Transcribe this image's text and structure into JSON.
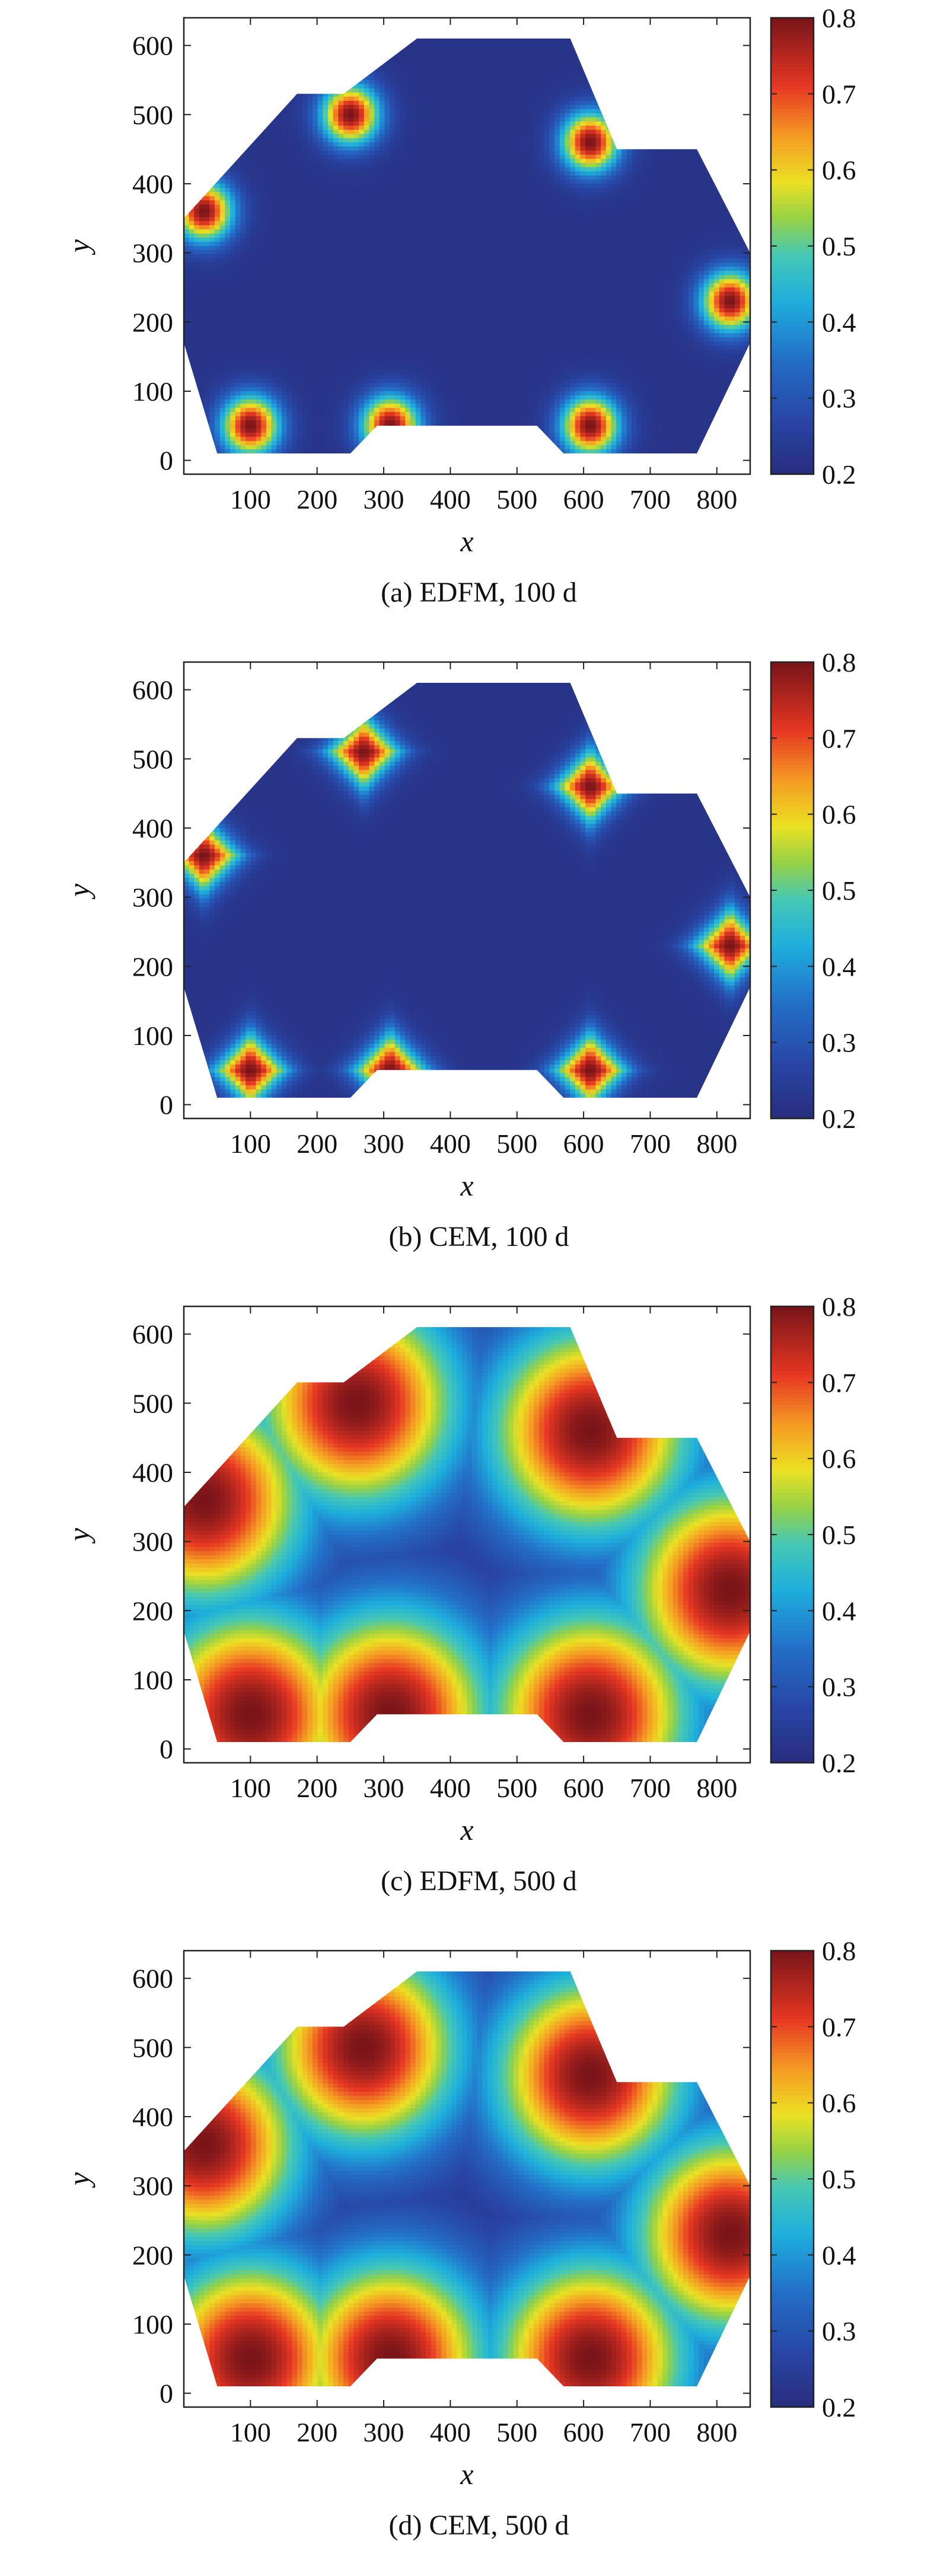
{
  "chart_data": [
    {
      "type": "heatmap",
      "caption": "(a) EDFM, 100 d",
      "xlabel": "x",
      "ylabel": "y",
      "xlim": [
        0,
        850
      ],
      "ylim": [
        -20,
        640
      ],
      "xticks": [
        "100",
        "200",
        "300",
        "400",
        "500",
        "600",
        "700",
        "800"
      ],
      "yticks": [
        "0",
        "100",
        "200",
        "300",
        "400",
        "500",
        "600"
      ],
      "colorbar": {
        "min": 0.2,
        "max": 0.8,
        "ticks": [
          "0.2",
          "0.3",
          "0.4",
          "0.5",
          "0.6",
          "0.7",
          "0.8"
        ]
      },
      "domain_polygon": [
        [
          0,
          170
        ],
        [
          50,
          10
        ],
        [
          250,
          10
        ],
        [
          290,
          50
        ],
        [
          530,
          50
        ],
        [
          570,
          10
        ],
        [
          770,
          10
        ],
        [
          850,
          170
        ],
        [
          850,
          300
        ],
        [
          770,
          450
        ],
        [
          650,
          450
        ],
        [
          580,
          610
        ],
        [
          350,
          610
        ],
        [
          240,
          530
        ],
        [
          170,
          530
        ],
        [
          0,
          350
        ]
      ],
      "background_value": 0.22,
      "shape": "round",
      "sources": [
        {
          "x": 100,
          "y": 50,
          "peak": 0.8,
          "radius": 55
        },
        {
          "x": 310,
          "y": 50,
          "peak": 0.8,
          "radius": 55
        },
        {
          "x": 610,
          "y": 50,
          "peak": 0.8,
          "radius": 55
        },
        {
          "x": 820,
          "y": 230,
          "peak": 0.8,
          "radius": 55
        },
        {
          "x": 610,
          "y": 460,
          "peak": 0.8,
          "radius": 55
        },
        {
          "x": 250,
          "y": 500,
          "peak": 0.8,
          "radius": 55
        },
        {
          "x": 30,
          "y": 360,
          "peak": 0.8,
          "radius": 55
        }
      ]
    },
    {
      "type": "heatmap",
      "caption": "(b) CEM, 100 d",
      "xlabel": "x",
      "ylabel": "y",
      "xlim": [
        0,
        850
      ],
      "ylim": [
        -20,
        640
      ],
      "xticks": [
        "100",
        "200",
        "300",
        "400",
        "500",
        "600",
        "700",
        "800"
      ],
      "yticks": [
        "0",
        "100",
        "200",
        "300",
        "400",
        "500",
        "600"
      ],
      "colorbar": {
        "min": 0.2,
        "max": 0.8,
        "ticks": [
          "0.2",
          "0.3",
          "0.4",
          "0.5",
          "0.6",
          "0.7",
          "0.8"
        ]
      },
      "domain_polygon": [
        [
          0,
          170
        ],
        [
          50,
          10
        ],
        [
          250,
          10
        ],
        [
          290,
          50
        ],
        [
          530,
          50
        ],
        [
          570,
          10
        ],
        [
          770,
          10
        ],
        [
          850,
          170
        ],
        [
          850,
          300
        ],
        [
          770,
          450
        ],
        [
          650,
          450
        ],
        [
          580,
          610
        ],
        [
          350,
          610
        ],
        [
          240,
          530
        ],
        [
          170,
          530
        ],
        [
          0,
          350
        ]
      ],
      "background_value": 0.22,
      "shape": "diamond",
      "sources": [
        {
          "x": 100,
          "y": 50,
          "peak": 0.8,
          "radius": 70
        },
        {
          "x": 310,
          "y": 50,
          "peak": 0.8,
          "radius": 70
        },
        {
          "x": 610,
          "y": 50,
          "peak": 0.8,
          "radius": 70
        },
        {
          "x": 820,
          "y": 230,
          "peak": 0.8,
          "radius": 70
        },
        {
          "x": 610,
          "y": 460,
          "peak": 0.8,
          "radius": 70
        },
        {
          "x": 270,
          "y": 510,
          "peak": 0.8,
          "radius": 70
        },
        {
          "x": 30,
          "y": 360,
          "peak": 0.8,
          "radius": 70
        }
      ]
    },
    {
      "type": "heatmap",
      "caption": "(c) EDFM, 500 d",
      "xlabel": "x",
      "ylabel": "y",
      "xlim": [
        0,
        850
      ],
      "ylim": [
        -20,
        640
      ],
      "xticks": [
        "100",
        "200",
        "300",
        "400",
        "500",
        "600",
        "700",
        "800"
      ],
      "yticks": [
        "0",
        "100",
        "200",
        "300",
        "400",
        "500",
        "600"
      ],
      "colorbar": {
        "min": 0.2,
        "max": 0.8,
        "ticks": [
          "0.2",
          "0.3",
          "0.4",
          "0.5",
          "0.6",
          "0.7",
          "0.8"
        ]
      },
      "domain_polygon": [
        [
          0,
          170
        ],
        [
          50,
          10
        ],
        [
          250,
          10
        ],
        [
          290,
          50
        ],
        [
          530,
          50
        ],
        [
          570,
          10
        ],
        [
          770,
          10
        ],
        [
          850,
          170
        ],
        [
          850,
          300
        ],
        [
          770,
          450
        ],
        [
          650,
          450
        ],
        [
          580,
          610
        ],
        [
          350,
          610
        ],
        [
          240,
          530
        ],
        [
          170,
          530
        ],
        [
          0,
          350
        ]
      ],
      "background_value": 0.22,
      "shape": "round",
      "sources": [
        {
          "x": 100,
          "y": 50,
          "peak": 0.8,
          "radius": 200
        },
        {
          "x": 310,
          "y": 50,
          "peak": 0.8,
          "radius": 200
        },
        {
          "x": 610,
          "y": 50,
          "peak": 0.8,
          "radius": 200
        },
        {
          "x": 820,
          "y": 230,
          "peak": 0.8,
          "radius": 200
        },
        {
          "x": 610,
          "y": 460,
          "peak": 0.8,
          "radius": 200
        },
        {
          "x": 260,
          "y": 500,
          "peak": 0.8,
          "radius": 200
        },
        {
          "x": 30,
          "y": 360,
          "peak": 0.8,
          "radius": 200
        }
      ]
    },
    {
      "type": "heatmap",
      "caption": "(d) CEM, 500 d",
      "xlabel": "x",
      "ylabel": "y",
      "xlim": [
        0,
        850
      ],
      "ylim": [
        -20,
        640
      ],
      "xticks": [
        "100",
        "200",
        "300",
        "400",
        "500",
        "600",
        "700",
        "800"
      ],
      "yticks": [
        "0",
        "100",
        "200",
        "300",
        "400",
        "500",
        "600"
      ],
      "colorbar": {
        "min": 0.2,
        "max": 0.8,
        "ticks": [
          "0.2",
          "0.3",
          "0.4",
          "0.5",
          "0.6",
          "0.7",
          "0.8"
        ]
      },
      "domain_polygon": [
        [
          0,
          170
        ],
        [
          50,
          10
        ],
        [
          250,
          10
        ],
        [
          290,
          50
        ],
        [
          530,
          50
        ],
        [
          570,
          10
        ],
        [
          770,
          10
        ],
        [
          850,
          170
        ],
        [
          850,
          300
        ],
        [
          770,
          450
        ],
        [
          650,
          450
        ],
        [
          580,
          610
        ],
        [
          350,
          610
        ],
        [
          240,
          530
        ],
        [
          170,
          530
        ],
        [
          0,
          350
        ]
      ],
      "background_value": 0.22,
      "shape": "round",
      "sources": [
        {
          "x": 100,
          "y": 50,
          "peak": 0.8,
          "radius": 190
        },
        {
          "x": 310,
          "y": 50,
          "peak": 0.8,
          "radius": 190
        },
        {
          "x": 610,
          "y": 50,
          "peak": 0.8,
          "radius": 190
        },
        {
          "x": 820,
          "y": 230,
          "peak": 0.8,
          "radius": 190
        },
        {
          "x": 610,
          "y": 460,
          "peak": 0.8,
          "radius": 190
        },
        {
          "x": 270,
          "y": 500,
          "peak": 0.8,
          "radius": 190
        },
        {
          "x": 30,
          "y": 360,
          "peak": 0.8,
          "radius": 190
        }
      ]
    }
  ]
}
